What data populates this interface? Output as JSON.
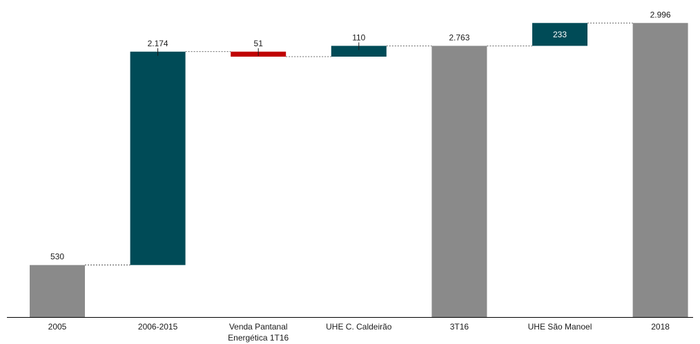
{
  "chart_data": {
    "type": "bar",
    "subtype": "waterfall",
    "categories": [
      "2005",
      "2006-2015",
      "Venda Pantanal Energética 1T16",
      "UHE C. Caldeirão",
      "3T16",
      "UHE São Manoel",
      "2018"
    ],
    "category_lines": [
      [
        "2005"
      ],
      [
        "2006-2015"
      ],
      [
        "Venda Pantanal",
        "Energética 1T16"
      ],
      [
        "UHE C. Caldeirão"
      ],
      [
        "3T16"
      ],
      [
        "UHE São Manoel"
      ],
      [
        "2018"
      ]
    ],
    "steps": [
      {
        "kind": "total",
        "value": 530,
        "label": "530"
      },
      {
        "kind": "increase",
        "value": 2174,
        "label": "2.174"
      },
      {
        "kind": "decrease",
        "value": 51,
        "label": "51"
      },
      {
        "kind": "increase",
        "value": 110,
        "label": "110"
      },
      {
        "kind": "total",
        "value": 2763,
        "label": "2.763"
      },
      {
        "kind": "increase",
        "value": 233,
        "label": "233"
      },
      {
        "kind": "total",
        "value": 2996,
        "label": "2.996"
      }
    ],
    "colors": {
      "total": "#8a8a8a",
      "increase": "#004b57",
      "decrease": "#c00000"
    },
    "ylim": [
      0,
      3100
    ],
    "grid": false,
    "legend": "none"
  }
}
